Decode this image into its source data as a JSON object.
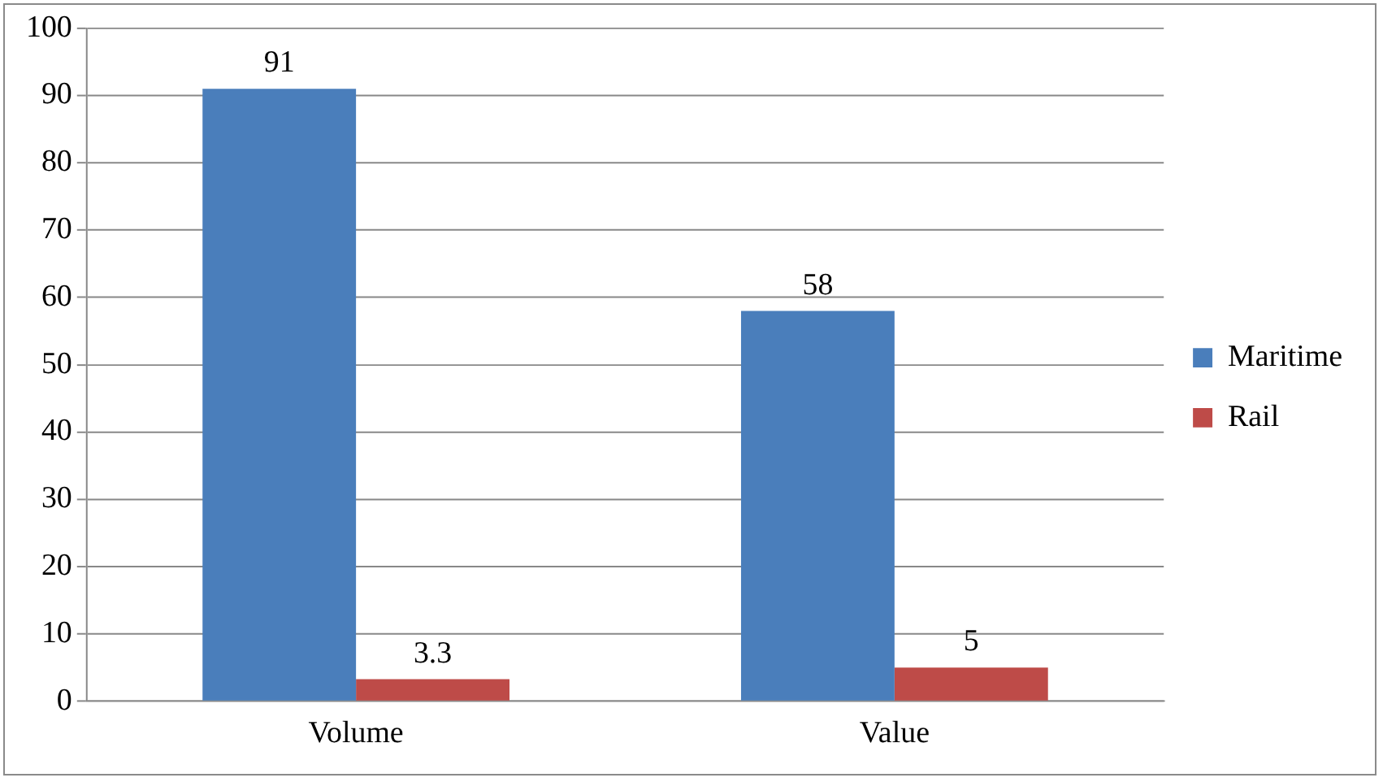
{
  "chart_data": {
    "type": "bar",
    "categories": [
      "Volume",
      "Value"
    ],
    "series": [
      {
        "name": "Maritime",
        "color": "#4a7ebb",
        "values": [
          91,
          58
        ]
      },
      {
        "name": "Rail",
        "color": "#be4b48",
        "values": [
          3.3,
          5
        ]
      }
    ],
    "ylim": [
      0,
      100
    ],
    "yticks": [
      0,
      10,
      20,
      30,
      40,
      50,
      60,
      70,
      80,
      90,
      100
    ],
    "grid": "y",
    "legend": "right",
    "data_labels": true
  }
}
